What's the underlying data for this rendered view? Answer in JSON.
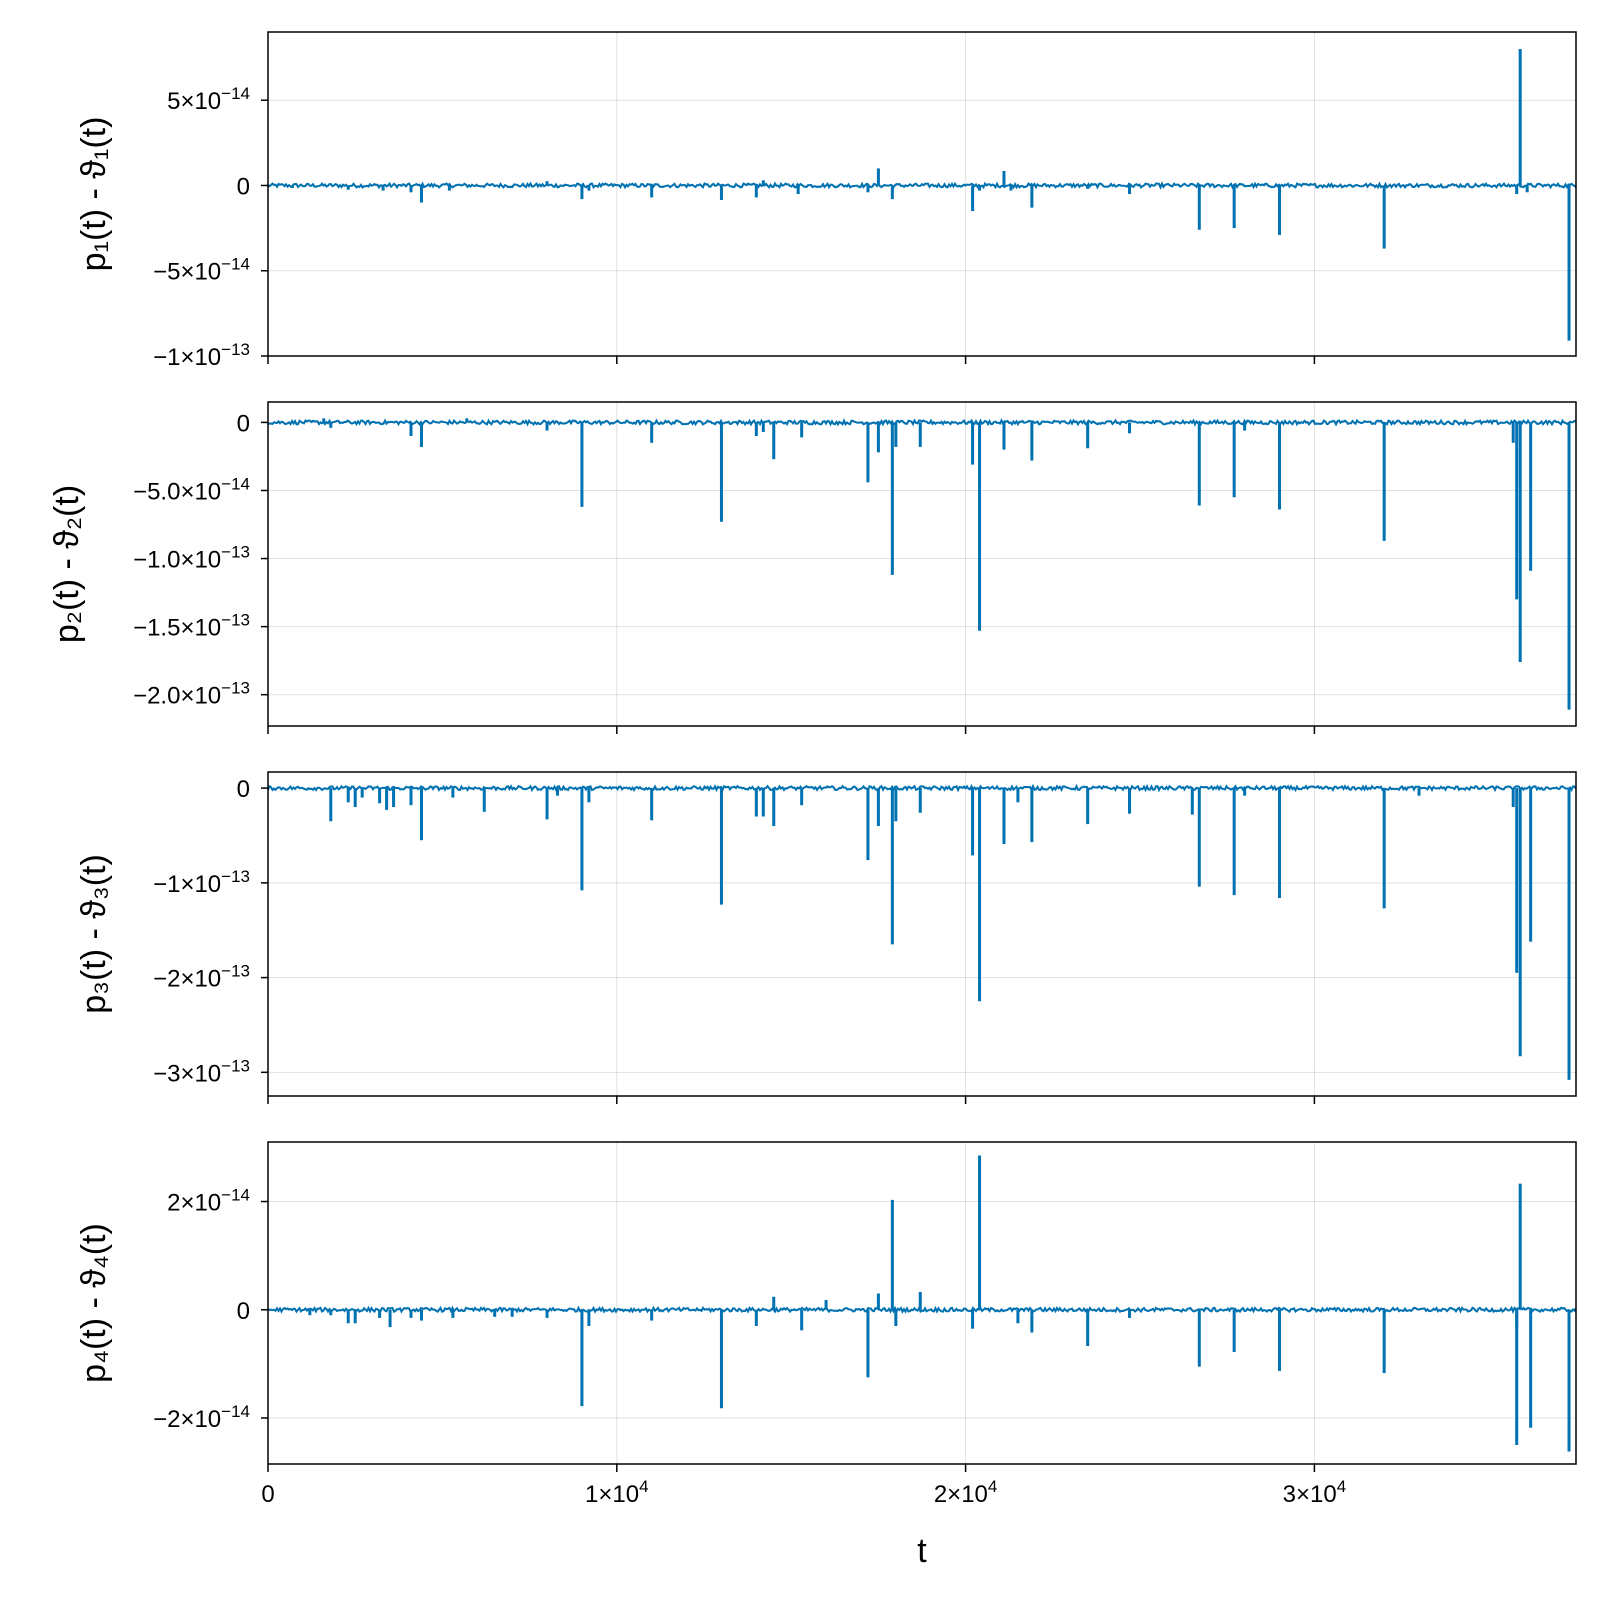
{
  "chart_data": {
    "type": "line",
    "colors": {
      "series": "#0072b2"
    },
    "grid": true,
    "shared_x": true,
    "xlabel": "t",
    "xlim": [
      0,
      37500
    ],
    "xticks": [
      {
        "value": 0,
        "mant": "0",
        "exp": ""
      },
      {
        "value": 10000,
        "mant": "1×10",
        "exp": "4"
      },
      {
        "value": 20000,
        "mant": "2×10",
        "exp": "4"
      },
      {
        "value": 30000,
        "mant": "3×10",
        "exp": "4"
      }
    ],
    "panels": [
      {
        "ylabel_parts": [
          "p₁(t) - ",
          "ϑ",
          "₁(t)"
        ],
        "ylim": [
          -1e-13,
          9e-14
        ],
        "yticks": [
          {
            "value": 5e-14,
            "mant": "5×10",
            "exp": "−14"
          },
          {
            "value": 0,
            "mant": "0",
            "exp": ""
          },
          {
            "value": -5e-14,
            "mant": "−5×10",
            "exp": "−14"
          },
          {
            "value": -1e-13,
            "mant": "−1×10",
            "exp": "−13"
          }
        ],
        "spikes": [
          [
            700,
            -1.5e-15
          ],
          [
            2300,
            -2.5e-15
          ],
          [
            3300,
            -3e-15
          ],
          [
            4100,
            -4e-15
          ],
          [
            4400,
            -1e-14
          ],
          [
            5200,
            -3e-15
          ],
          [
            8000,
            2.5e-15
          ],
          [
            9000,
            -8e-15
          ],
          [
            9200,
            -3e-15
          ],
          [
            11000,
            -7e-15
          ],
          [
            13000,
            -8.5e-15
          ],
          [
            14000,
            -7e-15
          ],
          [
            14200,
            3e-15
          ],
          [
            15200,
            -5e-15
          ],
          [
            17200,
            -4e-15
          ],
          [
            17500,
            1e-14
          ],
          [
            17900,
            -8e-15
          ],
          [
            20200,
            -1.5e-14
          ],
          [
            20400,
            -3e-15
          ],
          [
            21100,
            8.5e-15
          ],
          [
            21300,
            -3e-15
          ],
          [
            21900,
            -1.3e-14
          ],
          [
            23500,
            -2e-15
          ],
          [
            24700,
            -5e-15
          ],
          [
            26700,
            -2.6e-14
          ],
          [
            27700,
            -2.5e-14
          ],
          [
            29000,
            -2.9e-14
          ],
          [
            32000,
            -3.7e-14
          ],
          [
            35800,
            -5e-15
          ],
          [
            35900,
            8e-14
          ],
          [
            36100,
            -4e-15
          ],
          [
            37300,
            -9.1e-14
          ]
        ]
      },
      {
        "ylabel_parts": [
          "p₂(t) - ",
          "ϑ",
          "₂(t)"
        ],
        "ylim": [
          -2.23e-13,
          1.5e-14
        ],
        "yticks": [
          {
            "value": 0,
            "mant": "0",
            "exp": ""
          },
          {
            "value": -5e-14,
            "mant": "−5.0×10",
            "exp": "−14"
          },
          {
            "value": -1e-13,
            "mant": "−1.0×10",
            "exp": "−13"
          },
          {
            "value": -1.5e-13,
            "mant": "−1.5×10",
            "exp": "−13"
          },
          {
            "value": -2e-13,
            "mant": "−2.0×10",
            "exp": "−13"
          }
        ],
        "spikes": [
          [
            1600,
            3e-15
          ],
          [
            1800,
            -4e-15
          ],
          [
            4100,
            -1e-14
          ],
          [
            4400,
            -1.8e-14
          ],
          [
            5700,
            3e-15
          ],
          [
            8000,
            -6e-15
          ],
          [
            9000,
            -6.2e-14
          ],
          [
            11000,
            -1.5e-14
          ],
          [
            13000,
            -7.3e-14
          ],
          [
            14000,
            -1e-14
          ],
          [
            14200,
            -7e-15
          ],
          [
            14500,
            -2.7e-14
          ],
          [
            15300,
            -1.1e-14
          ],
          [
            17200,
            -4.4e-14
          ],
          [
            17500,
            -2.2e-14
          ],
          [
            17900,
            -1.12e-13
          ],
          [
            18000,
            -1.8e-14
          ],
          [
            18700,
            -1.8e-14
          ],
          [
            20200,
            -3.1e-14
          ],
          [
            20400,
            -1.53e-13
          ],
          [
            21100,
            -2e-14
          ],
          [
            21900,
            -2.8e-14
          ],
          [
            23500,
            -1.9e-14
          ],
          [
            24700,
            -8e-15
          ],
          [
            26700,
            -6.1e-14
          ],
          [
            27700,
            -5.5e-14
          ],
          [
            28000,
            -6e-15
          ],
          [
            29000,
            -6.4e-14
          ],
          [
            32000,
            -8.7e-14
          ],
          [
            35700,
            -1.5e-14
          ],
          [
            35800,
            -1.3e-13
          ],
          [
            35900,
            -1.76e-13
          ],
          [
            36200,
            -1.09e-13
          ],
          [
            37300,
            -2.11e-13
          ]
        ]
      },
      {
        "ylabel_parts": [
          "p₃(t) - ",
          "ϑ",
          "₃(t)"
        ],
        "ylim": [
          -3.25e-13,
          1.7e-14
        ],
        "yticks": [
          {
            "value": 0,
            "mant": "0",
            "exp": ""
          },
          {
            "value": -1e-13,
            "mant": "−1×10",
            "exp": "−13"
          },
          {
            "value": -2e-13,
            "mant": "−2×10",
            "exp": "−13"
          },
          {
            "value": -3e-13,
            "mant": "−3×10",
            "exp": "−13"
          }
        ],
        "spikes": [
          [
            1800,
            -3.5e-14
          ],
          [
            2300,
            -1.5e-14
          ],
          [
            2500,
            -2e-14
          ],
          [
            2700,
            -1e-14
          ],
          [
            3200,
            -1.6e-14
          ],
          [
            3400,
            -2.3e-14
          ],
          [
            3600,
            -2e-14
          ],
          [
            4100,
            -1.8e-14
          ],
          [
            4400,
            -5.5e-14
          ],
          [
            5300,
            -1e-14
          ],
          [
            6200,
            -2.5e-14
          ],
          [
            8000,
            -3.3e-14
          ],
          [
            8300,
            -8e-15
          ],
          [
            9000,
            -1.08e-13
          ],
          [
            9200,
            -1.5e-14
          ],
          [
            11000,
            -3.4e-14
          ],
          [
            13000,
            -1.23e-13
          ],
          [
            14000,
            -3e-14
          ],
          [
            14200,
            -3e-14
          ],
          [
            14500,
            -4e-14
          ],
          [
            15300,
            -1.8e-14
          ],
          [
            17200,
            -7.6e-14
          ],
          [
            17500,
            -4e-14
          ],
          [
            17900,
            -1.65e-13
          ],
          [
            18000,
            -3.5e-14
          ],
          [
            18700,
            -2.6e-14
          ],
          [
            20200,
            -7.1e-14
          ],
          [
            20400,
            -2.25e-13
          ],
          [
            21100,
            -5.9e-14
          ],
          [
            21500,
            -1.5e-14
          ],
          [
            21900,
            -5.7e-14
          ],
          [
            23500,
            -3.8e-14
          ],
          [
            24700,
            -2.7e-14
          ],
          [
            26500,
            -2.8e-14
          ],
          [
            26700,
            -1.04e-13
          ],
          [
            27700,
            -1.13e-13
          ],
          [
            28000,
            -8e-15
          ],
          [
            29000,
            -1.16e-13
          ],
          [
            32000,
            -1.27e-13
          ],
          [
            33000,
            -8e-15
          ],
          [
            35700,
            -2e-14
          ],
          [
            35800,
            -1.95e-13
          ],
          [
            35900,
            -2.83e-13
          ],
          [
            36200,
            -1.62e-13
          ],
          [
            37300,
            -3.08e-13
          ]
        ]
      },
      {
        "ylabel_parts": [
          "p₄(t) - ",
          "ϑ",
          "₄(t)"
        ],
        "ylim": [
          -2.85e-14,
          3.1e-14
        ],
        "yticks": [
          {
            "value": 2e-14,
            "mant": "2×10",
            "exp": "−14"
          },
          {
            "value": 0,
            "mant": "0",
            "exp": ""
          },
          {
            "value": -2e-14,
            "mant": "−2×10",
            "exp": "−14"
          }
        ],
        "spikes": [
          [
            1200,
            -1e-15
          ],
          [
            1800,
            -1e-15
          ],
          [
            2300,
            -2.5e-15
          ],
          [
            2500,
            -2.5e-15
          ],
          [
            3200,
            -1.5e-15
          ],
          [
            3500,
            -3.2e-15
          ],
          [
            4100,
            -1.5e-15
          ],
          [
            4400,
            -2e-15
          ],
          [
            5300,
            -1.5e-15
          ],
          [
            6500,
            -1.3e-15
          ],
          [
            7000,
            -1.3e-15
          ],
          [
            8000,
            -1.5e-15
          ],
          [
            9000,
            -1.78e-14
          ],
          [
            9200,
            -3e-15
          ],
          [
            11000,
            -2e-15
          ],
          [
            13000,
            -1.82e-14
          ],
          [
            14000,
            -3e-15
          ],
          [
            14500,
            2.4e-15
          ],
          [
            15300,
            -3.8e-15
          ],
          [
            16000,
            1.8e-15
          ],
          [
            17200,
            -1.25e-14
          ],
          [
            17500,
            3e-15
          ],
          [
            17900,
            2.03e-14
          ],
          [
            18000,
            -3e-15
          ],
          [
            18700,
            3.3e-15
          ],
          [
            20200,
            -3.5e-15
          ],
          [
            20400,
            2.85e-14
          ],
          [
            21500,
            -2.5e-15
          ],
          [
            21900,
            -4.2e-15
          ],
          [
            23500,
            -6.7e-15
          ],
          [
            24700,
            -1.5e-15
          ],
          [
            26700,
            -1.05e-14
          ],
          [
            27700,
            -7.8e-15
          ],
          [
            29000,
            -1.13e-14
          ],
          [
            32000,
            -1.17e-14
          ],
          [
            35800,
            -3.5e-15
          ],
          [
            35800,
            -2.5e-14
          ],
          [
            35900,
            2.33e-14
          ],
          [
            36200,
            -2.18e-14
          ],
          [
            37300,
            -2.62e-14
          ]
        ]
      }
    ]
  }
}
